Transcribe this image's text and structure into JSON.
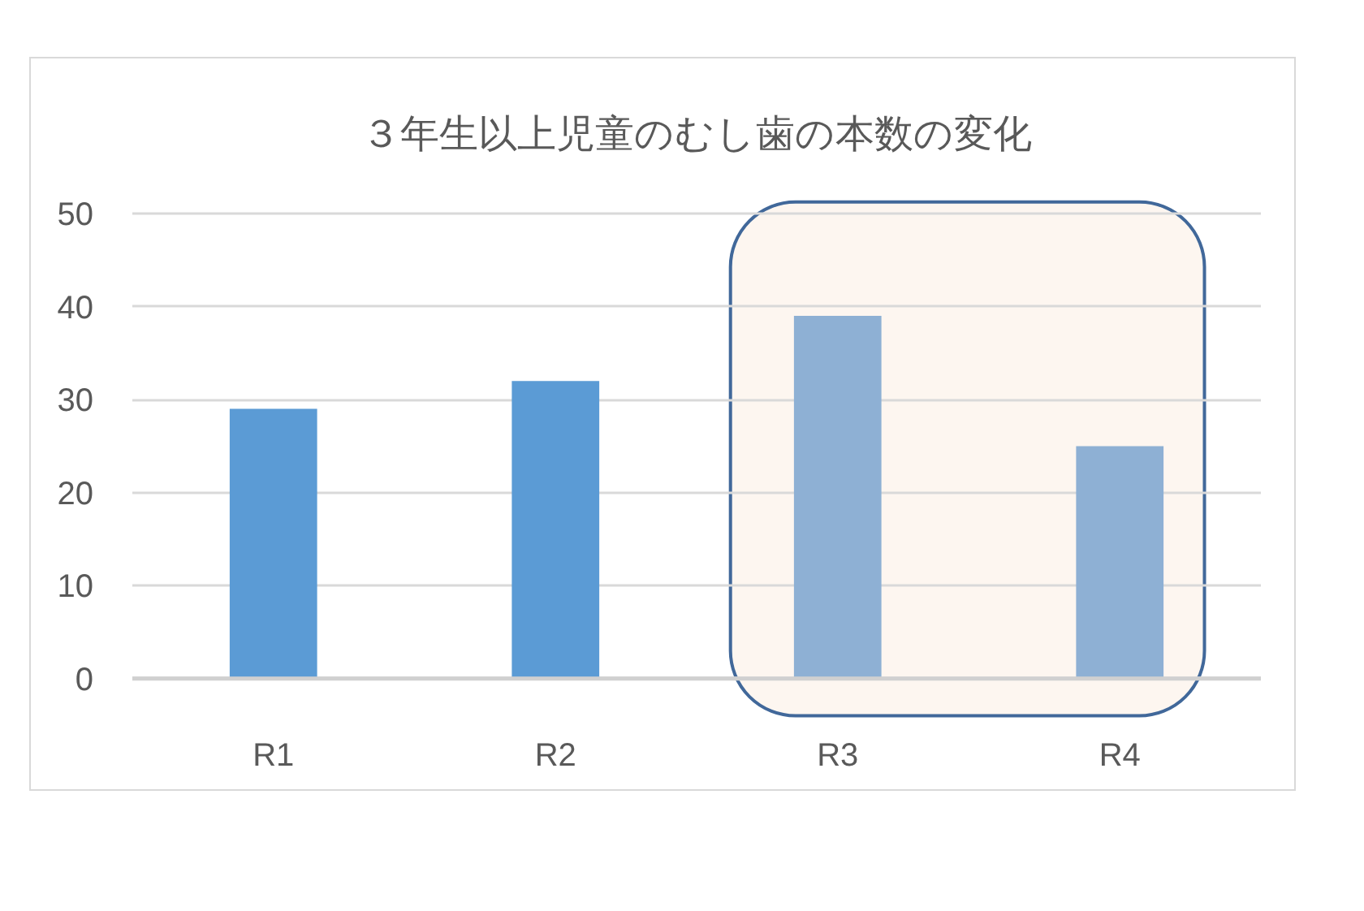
{
  "chart_data": {
    "type": "bar",
    "title": "３年生以上児童のむし歯の本数の変化",
    "categories": [
      "R1",
      "R2",
      "R3",
      "R4"
    ],
    "values": [
      29,
      32,
      39,
      25
    ],
    "colors": [
      "#5b9bd5",
      "#5b9bd5",
      "#8eb0d4",
      "#8eb0d4"
    ],
    "ylim": [
      0,
      50
    ],
    "yticks": [
      0,
      10,
      20,
      30,
      40,
      50
    ],
    "grid": "y",
    "bands": [
      {
        "axis": "x",
        "from": "R3",
        "to": "R4",
        "color": "#fdf6f0"
      }
    ]
  }
}
